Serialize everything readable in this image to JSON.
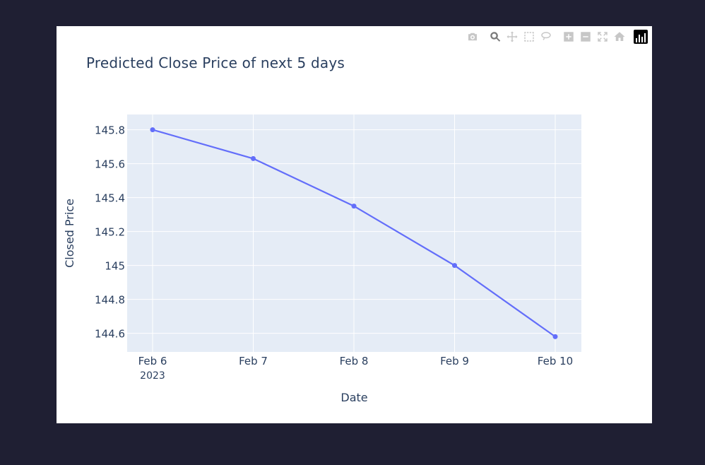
{
  "modebar": {
    "buttons": [
      {
        "name": "download-plot-as-png",
        "icon": "camera-icon"
      },
      {
        "name": "zoom",
        "icon": "zoom-icon",
        "active": true
      },
      {
        "name": "pan",
        "icon": "pan-icon"
      },
      {
        "name": "box-select",
        "icon": "box-select-icon"
      },
      {
        "name": "lasso-select",
        "icon": "lasso-icon"
      },
      {
        "name": "zoom-in",
        "icon": "zoom-in-icon"
      },
      {
        "name": "zoom-out",
        "icon": "zoom-out-icon"
      },
      {
        "name": "autoscale",
        "icon": "autoscale-icon"
      },
      {
        "name": "reset-axes",
        "icon": "home-icon"
      }
    ],
    "logo": "plotly-logo-icon"
  },
  "chart_data": {
    "type": "line",
    "title": "Predicted Close Price of next 5 days",
    "xlabel": "Date",
    "ylabel": "Closed Price",
    "categories": [
      "Feb 6",
      "Feb 7",
      "Feb 8",
      "Feb 9",
      "Feb 10"
    ],
    "x_year_label": "2023",
    "series": [
      {
        "values": [
          145.8,
          145.63,
          145.35,
          145.0,
          144.58
        ],
        "color": "#636efa"
      }
    ],
    "yticks": [
      144.6,
      144.8,
      145,
      145.2,
      145.4,
      145.6,
      145.8
    ],
    "ytick_labels": [
      "144.6",
      "144.8",
      "145",
      "145.2",
      "145.4",
      "145.6",
      "145.8"
    ],
    "ylim": [
      144.49,
      145.89
    ],
    "grid": true,
    "plot_bg": "#e5ecf6",
    "legend": "none"
  }
}
